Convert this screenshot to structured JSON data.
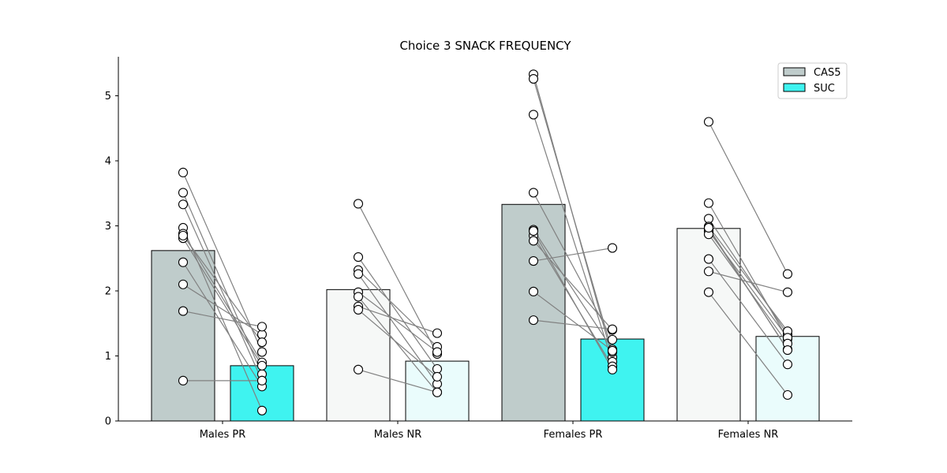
{
  "chart_data": {
    "type": "bar",
    "title": "Choice  3 SNACK FREQUENCY",
    "xlabel": "",
    "ylabel": "",
    "categories": [
      "Males PR",
      "Males NR",
      "Females PR",
      "Females NR"
    ],
    "ylim": [
      0,
      5.6
    ],
    "yticks": [
      0,
      1,
      2,
      3,
      4,
      5
    ],
    "legend": {
      "placement": "top-right",
      "entries": [
        "CAS5",
        "SUC"
      ]
    },
    "series": [
      {
        "name": "CAS5",
        "values": [
          2.62,
          2.02,
          3.33,
          2.96
        ]
      },
      {
        "name": "SUC",
        "values": [
          0.85,
          0.92,
          1.26,
          1.3
        ]
      }
    ],
    "bar_colors": {
      "CAS5": [
        "#bfcccb",
        "#f6f8f7",
        "#bfcccb",
        "#f6f8f7"
      ],
      "SUC": [
        "#3ff3f0",
        "#eafcfc",
        "#3ff3f0",
        "#eafcfc"
      ]
    },
    "line_color": "#808080",
    "pairs": [
      [
        [
          3.82,
          1.06
        ],
        [
          3.51,
          0.72
        ],
        [
          3.33,
          0.62
        ],
        [
          2.97,
          0.16
        ],
        [
          2.88,
          0.9
        ],
        [
          2.81,
          0.85
        ],
        [
          2.44,
          0.53
        ],
        [
          2.1,
          1.33
        ],
        [
          1.69,
          1.45
        ],
        [
          0.62,
          0.62
        ],
        [
          2.85,
          1.21
        ]
      ],
      [
        [
          3.34,
          1.03
        ],
        [
          2.52,
          0.8
        ],
        [
          2.32,
          1.14
        ],
        [
          2.26,
          0.57
        ],
        [
          1.98,
          1.06
        ],
        [
          1.91,
          0.44
        ],
        [
          1.76,
          1.35
        ],
        [
          1.71,
          0.68
        ],
        [
          0.79,
          0.44
        ]
      ],
      [
        [
          5.33,
          0.98
        ],
        [
          5.26,
          1.06
        ],
        [
          4.71,
          0.91
        ],
        [
          3.51,
          1.25
        ],
        [
          2.94,
          1.1
        ],
        [
          2.85,
          0.84
        ],
        [
          2.77,
          1.4
        ],
        [
          2.46,
          2.66
        ],
        [
          1.99,
          1.08
        ],
        [
          1.55,
          1.41
        ],
        [
          2.92,
          0.79
        ]
      ],
      [
        [
          4.6,
          2.26
        ],
        [
          3.35,
          1.26
        ],
        [
          3.11,
          1.33
        ],
        [
          2.99,
          1.38
        ],
        [
          2.95,
          1.1
        ],
        [
          2.92,
          1.28
        ],
        [
          2.87,
          1.19
        ],
        [
          2.49,
          0.87
        ],
        [
          2.3,
          1.98
        ],
        [
          1.98,
          0.4
        ],
        [
          2.97,
          1.09
        ]
      ]
    ]
  }
}
